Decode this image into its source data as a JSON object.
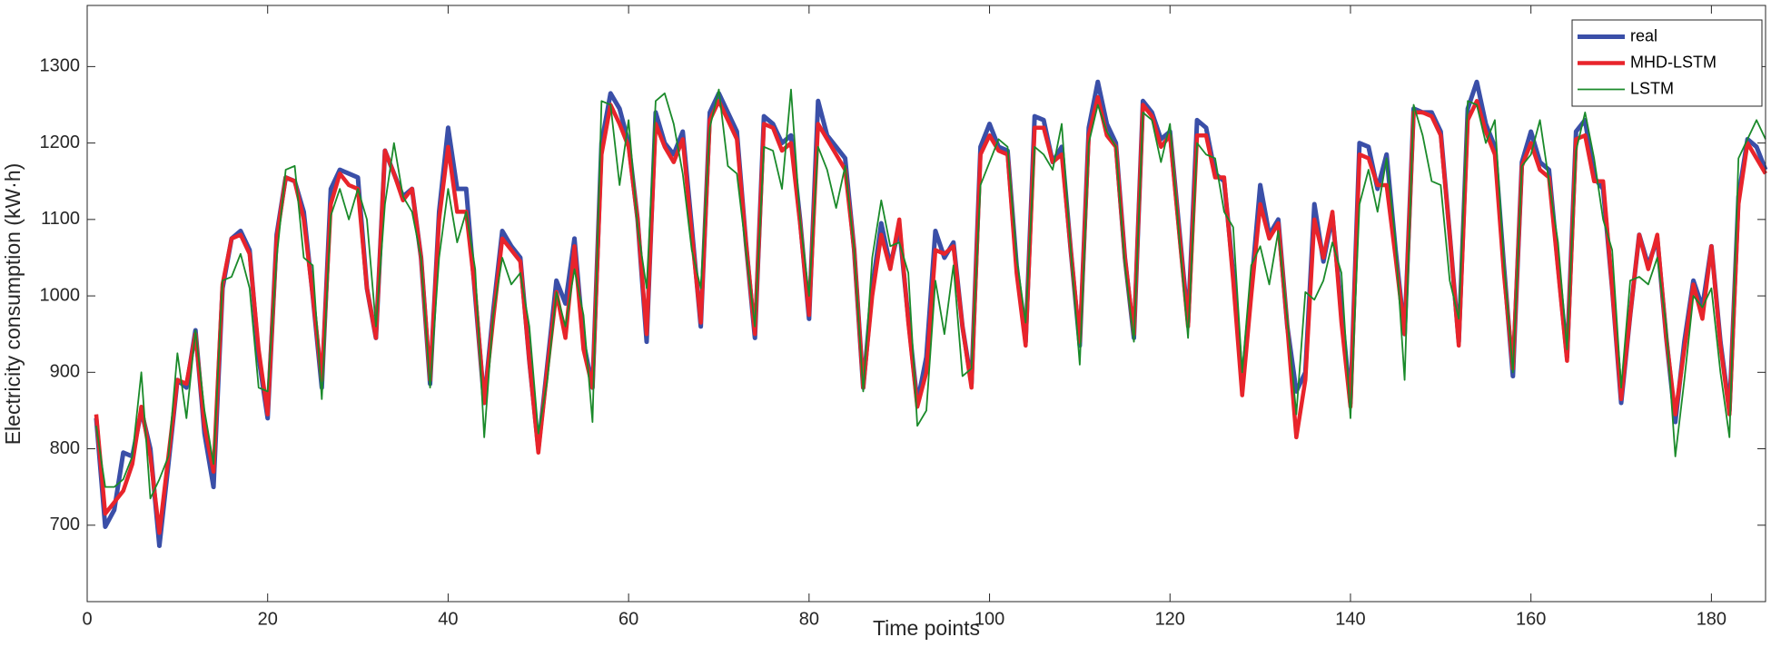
{
  "chart_data": {
    "type": "line",
    "xlabel": "Time points",
    "ylabel": "Electricity consumption (kW·h)",
    "x": [
      1,
      2,
      3,
      4,
      5,
      6,
      7,
      8,
      9,
      10,
      11,
      12,
      13,
      14,
      15,
      16,
      17,
      18,
      19,
      20,
      21,
      22,
      23,
      24,
      25,
      26,
      27,
      28,
      29,
      30,
      31,
      32,
      33,
      34,
      35,
      36,
      37,
      38,
      39,
      40,
      41,
      42,
      43,
      44,
      45,
      46,
      47,
      48,
      49,
      50,
      51,
      52,
      53,
      54,
      55,
      56,
      57,
      58,
      59,
      60,
      61,
      62,
      63,
      64,
      65,
      66,
      67,
      68,
      69,
      70,
      71,
      72,
      73,
      74,
      75,
      76,
      77,
      78,
      79,
      80,
      81,
      82,
      83,
      84,
      85,
      86,
      87,
      88,
      89,
      90,
      91,
      92,
      93,
      94,
      95,
      96,
      97,
      98,
      99,
      100,
      101,
      102,
      103,
      104,
      105,
      106,
      107,
      108,
      109,
      110,
      111,
      112,
      113,
      114,
      115,
      116,
      117,
      118,
      119,
      120,
      121,
      122,
      123,
      124,
      125,
      126,
      127,
      128,
      129,
      130,
      131,
      132,
      133,
      134,
      135,
      136,
      137,
      138,
      139,
      140,
      141,
      142,
      143,
      144,
      145,
      146,
      147,
      148,
      149,
      150,
      151,
      152,
      153,
      154,
      155,
      156,
      157,
      158,
      159,
      160,
      161,
      162,
      163,
      164,
      165,
      166,
      167,
      168,
      169,
      170,
      171,
      172,
      173,
      174,
      175,
      176,
      177,
      178,
      179,
      180,
      181,
      182,
      183,
      184,
      185,
      186
    ],
    "series": [
      {
        "name": "real",
        "color": "#3a4fa8",
        "values": [
          840,
          698,
          720,
          795,
          790,
          850,
          800,
          673,
          780,
          890,
          880,
          955,
          820,
          750,
          1010,
          1075,
          1085,
          1060,
          920,
          840,
          1080,
          1155,
          1150,
          1110,
          1000,
          880,
          1140,
          1165,
          1160,
          1155,
          1010,
          945,
          1190,
          1160,
          1130,
          1140,
          1050,
          885,
          1110,
          1220,
          1140,
          1140,
          1000,
          860,
          980,
          1085,
          1065,
          1050,
          915,
          800,
          910,
          1020,
          990,
          1075,
          940,
          880,
          1200,
          1265,
          1245,
          1200,
          1100,
          940,
          1240,
          1200,
          1185,
          1215,
          1090,
          960,
          1240,
          1265,
          1240,
          1215,
          1070,
          945,
          1235,
          1225,
          1200,
          1210,
          1100,
          970,
          1255,
          1210,
          1195,
          1180,
          1060,
          880,
          1010,
          1095,
          1040,
          1090,
          970,
          860,
          920,
          1085,
          1050,
          1070,
          960,
          885,
          1195,
          1225,
          1195,
          1190,
          1040,
          940,
          1235,
          1230,
          1175,
          1195,
          1060,
          935,
          1220,
          1280,
          1225,
          1200,
          1050,
          945,
          1255,
          1240,
          1205,
          1215,
          1090,
          965,
          1230,
          1220,
          1160,
          1150,
          1030,
          880,
          1010,
          1145,
          1080,
          1100,
          960,
          875,
          900,
          1120,
          1045,
          1105,
          980,
          860,
          1200,
          1195,
          1140,
          1185,
          1060,
          950,
          1245,
          1240,
          1240,
          1215,
          1080,
          940,
          1245,
          1280,
          1225,
          1195,
          1040,
          895,
          1175,
          1215,
          1175,
          1165,
          1040,
          920,
          1215,
          1230,
          1155,
          1140,
          1010,
          860,
          975,
          1080,
          1040,
          1075,
          945,
          835,
          940,
          1020,
          985,
          1065,
          940,
          850,
          1130,
          1205,
          1195,
          1165
        ]
      },
      {
        "name": "MHD-LSTM",
        "color": "#e8242b",
        "values": [
          845,
          715,
          730,
          745,
          780,
          855,
          790,
          690,
          790,
          890,
          885,
          950,
          830,
          770,
          1015,
          1075,
          1080,
          1055,
          930,
          845,
          1075,
          1155,
          1150,
          1100,
          1000,
          890,
          1120,
          1160,
          1145,
          1140,
          1010,
          945,
          1190,
          1160,
          1125,
          1140,
          1050,
          890,
          1100,
          1195,
          1110,
          1110,
          1005,
          860,
          970,
          1075,
          1060,
          1045,
          915,
          795,
          905,
          1005,
          945,
          1065,
          930,
          880,
          1185,
          1250,
          1225,
          1195,
          1100,
          950,
          1225,
          1195,
          1175,
          1205,
          1080,
          965,
          1230,
          1255,
          1230,
          1205,
          1070,
          950,
          1225,
          1220,
          1190,
          1200,
          1095,
          975,
          1225,
          1205,
          1185,
          1165,
          1060,
          880,
          1000,
          1080,
          1035,
          1100,
          965,
          855,
          900,
          1060,
          1055,
          1065,
          960,
          880,
          1185,
          1210,
          1190,
          1185,
          1030,
          935,
          1220,
          1220,
          1175,
          1185,
          1060,
          940,
          1210,
          1260,
          1210,
          1195,
          1050,
          950,
          1250,
          1235,
          1195,
          1210,
          1085,
          960,
          1210,
          1210,
          1155,
          1155,
          1020,
          870,
          1000,
          1120,
          1075,
          1095,
          960,
          815,
          890,
          1100,
          1050,
          1110,
          965,
          855,
          1185,
          1180,
          1145,
          1145,
          1050,
          950,
          1240,
          1240,
          1235,
          1210,
          1080,
          935,
          1230,
          1255,
          1215,
          1185,
          1030,
          905,
          1170,
          1200,
          1165,
          1155,
          1035,
          915,
          1205,
          1210,
          1150,
          1150,
          1010,
          865,
          975,
          1080,
          1035,
          1080,
          945,
          845,
          930,
          1015,
          970,
          1065,
          935,
          845,
          1120,
          1200,
          1180,
          1160
        ]
      },
      {
        "name": "LSTM",
        "color": "#1a8a2a",
        "values": [
          830,
          750,
          750,
          760,
          790,
          900,
          735,
          760,
          790,
          925,
          840,
          955,
          850,
          780,
          1020,
          1025,
          1055,
          1010,
          880,
          875,
          1050,
          1165,
          1170,
          1050,
          1040,
          865,
          1105,
          1140,
          1100,
          1140,
          1100,
          960,
          1120,
          1200,
          1130,
          1110,
          1050,
          880,
          1050,
          1140,
          1070,
          1110,
          1035,
          815,
          975,
          1050,
          1015,
          1030,
          960,
          820,
          890,
          1005,
          960,
          1035,
          975,
          835,
          1255,
          1250,
          1145,
          1230,
          1090,
          1010,
          1255,
          1265,
          1225,
          1160,
          1060,
          1010,
          1220,
          1270,
          1170,
          1160,
          1060,
          960,
          1195,
          1190,
          1140,
          1270,
          1100,
          1000,
          1195,
          1165,
          1115,
          1170,
          1060,
          875,
          1050,
          1125,
          1065,
          1070,
          1030,
          830,
          850,
          1020,
          950,
          1040,
          895,
          905,
          1145,
          1175,
          1205,
          1195,
          1050,
          965,
          1195,
          1185,
          1165,
          1225,
          1060,
          910,
          1200,
          1250,
          1215,
          1195,
          1040,
          940,
          1240,
          1230,
          1175,
          1225,
          1080,
          945,
          1200,
          1185,
          1180,
          1110,
          1090,
          900,
          1040,
          1065,
          1015,
          1085,
          970,
          845,
          1005,
          995,
          1020,
          1070,
          1030,
          840,
          1120,
          1165,
          1110,
          1180,
          1070,
          890,
          1250,
          1210,
          1150,
          1145,
          1020,
          970,
          1255,
          1250,
          1200,
          1230,
          1045,
          900,
          1170,
          1185,
          1230,
          1150,
          1070,
          930,
          1190,
          1240,
          1180,
          1100,
          1060,
          880,
          1020,
          1025,
          1015,
          1050,
          960,
          790,
          890,
          1000,
          985,
          1010,
          900,
          815,
          1180,
          1205,
          1230,
          1205
        ]
      }
    ],
    "xlim": [
      0,
      186
    ],
    "xticks": [
      0,
      20,
      40,
      60,
      80,
      100,
      120,
      140,
      160,
      180
    ],
    "ylim": [
      600,
      1380
    ],
    "yticks": [
      700,
      800,
      900,
      1000,
      1100,
      1200,
      1300
    ],
    "grid": false,
    "legend_position": "northeast"
  }
}
